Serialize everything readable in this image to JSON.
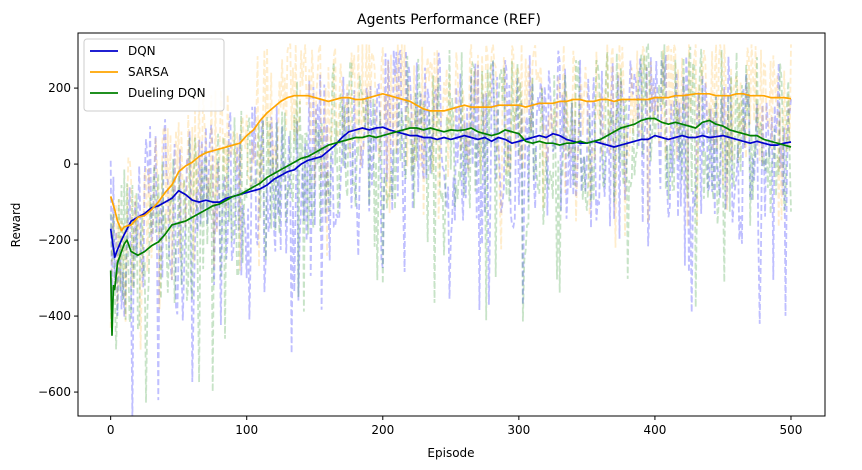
{
  "chart_data": {
    "type": "line",
    "title": "Agents Performance (REF)",
    "xlabel": "Episode",
    "ylabel": "Reward",
    "xlim": [
      -24,
      525
    ],
    "ylim": [
      -663,
      345
    ],
    "xticks": [
      0,
      100,
      200,
      300,
      400,
      500
    ],
    "yticks": [
      -600,
      -400,
      -200,
      0,
      200
    ],
    "grid": false,
    "legend_position": "top-left",
    "series": [
      {
        "name": "DQN",
        "color": "#0000cc",
        "style": "solid",
        "x": [
          0,
          3,
          5,
          8,
          10,
          15,
          20,
          25,
          30,
          35,
          40,
          45,
          50,
          55,
          60,
          65,
          70,
          75,
          80,
          85,
          90,
          95,
          100,
          105,
          110,
          115,
          120,
          125,
          130,
          135,
          140,
          145,
          150,
          155,
          160,
          165,
          170,
          175,
          180,
          185,
          190,
          195,
          200,
          205,
          210,
          215,
          220,
          225,
          230,
          235,
          240,
          245,
          250,
          255,
          260,
          265,
          270,
          275,
          280,
          285,
          290,
          295,
          300,
          305,
          310,
          315,
          320,
          325,
          330,
          335,
          340,
          345,
          350,
          355,
          360,
          365,
          370,
          375,
          380,
          385,
          390,
          395,
          400,
          405,
          410,
          415,
          420,
          425,
          430,
          435,
          440,
          445,
          450,
          455,
          460,
          465,
          470,
          475,
          480,
          485,
          490,
          495,
          500
        ],
        "y": [
          -170,
          -245,
          -225,
          -200,
          -185,
          -150,
          -140,
          -130,
          -115,
          -110,
          -100,
          -90,
          -70,
          -80,
          -95,
          -100,
          -95,
          -100,
          -100,
          -90,
          -85,
          -80,
          -75,
          -70,
          -65,
          -55,
          -40,
          -30,
          -20,
          -15,
          0,
          10,
          15,
          20,
          35,
          50,
          70,
          85,
          90,
          95,
          90,
          95,
          97,
          90,
          85,
          80,
          75,
          75,
          70,
          70,
          65,
          70,
          65,
          70,
          75,
          70,
          65,
          70,
          60,
          70,
          65,
          55,
          60,
          65,
          70,
          75,
          70,
          80,
          75,
          65,
          60,
          55,
          55,
          60,
          55,
          50,
          45,
          50,
          55,
          60,
          65,
          65,
          75,
          70,
          65,
          70,
          75,
          70,
          70,
          75,
          70,
          72,
          75,
          70,
          65,
          60,
          55,
          60,
          55,
          50,
          50,
          55,
          58
        ]
      },
      {
        "name": "SARSA",
        "color": "#ffa500",
        "style": "solid",
        "x": [
          0,
          3,
          5,
          8,
          10,
          15,
          20,
          25,
          30,
          35,
          40,
          45,
          50,
          55,
          60,
          65,
          70,
          75,
          80,
          85,
          90,
          95,
          100,
          105,
          110,
          115,
          120,
          125,
          130,
          135,
          140,
          145,
          150,
          155,
          160,
          165,
          170,
          175,
          180,
          185,
          190,
          195,
          200,
          205,
          210,
          215,
          220,
          225,
          230,
          235,
          240,
          245,
          250,
          255,
          260,
          265,
          270,
          275,
          280,
          285,
          290,
          295,
          300,
          305,
          310,
          315,
          320,
          325,
          330,
          335,
          340,
          345,
          350,
          355,
          360,
          365,
          370,
          375,
          380,
          385,
          390,
          395,
          400,
          405,
          410,
          415,
          420,
          425,
          430,
          435,
          440,
          445,
          450,
          455,
          460,
          465,
          470,
          475,
          480,
          485,
          490,
          495,
          500
        ],
        "y": [
          -85,
          -120,
          -150,
          -175,
          -165,
          -160,
          -140,
          -135,
          -120,
          -100,
          -75,
          -55,
          -20,
          -5,
          5,
          20,
          30,
          35,
          40,
          45,
          50,
          55,
          75,
          90,
          115,
          135,
          150,
          165,
          175,
          180,
          180,
          180,
          175,
          170,
          165,
          170,
          175,
          175,
          170,
          170,
          175,
          180,
          185,
          180,
          175,
          170,
          165,
          155,
          145,
          140,
          140,
          140,
          145,
          150,
          155,
          150,
          150,
          150,
          150,
          155,
          155,
          155,
          155,
          150,
          155,
          160,
          160,
          160,
          165,
          165,
          170,
          170,
          165,
          165,
          170,
          170,
          165,
          170,
          170,
          170,
          170,
          170,
          175,
          175,
          175,
          180,
          180,
          182,
          185,
          185,
          185,
          180,
          180,
          180,
          185,
          185,
          180,
          180,
          180,
          175,
          175,
          175,
          172
        ]
      },
      {
        "name": "Dueling DQN",
        "color": "#008000",
        "style": "solid",
        "x": [
          0,
          1,
          2,
          3,
          5,
          8,
          10,
          12,
          15,
          20,
          25,
          30,
          35,
          40,
          45,
          50,
          55,
          60,
          65,
          70,
          75,
          80,
          85,
          90,
          95,
          100,
          105,
          110,
          115,
          120,
          125,
          130,
          135,
          140,
          145,
          150,
          155,
          160,
          165,
          170,
          175,
          180,
          185,
          190,
          195,
          200,
          205,
          210,
          215,
          220,
          225,
          230,
          235,
          240,
          245,
          250,
          255,
          260,
          265,
          270,
          275,
          280,
          285,
          290,
          295,
          300,
          305,
          310,
          315,
          320,
          325,
          330,
          335,
          340,
          345,
          350,
          355,
          360,
          365,
          370,
          375,
          380,
          385,
          390,
          395,
          400,
          405,
          410,
          415,
          420,
          425,
          430,
          435,
          440,
          445,
          450,
          455,
          460,
          465,
          470,
          475,
          480,
          485,
          490,
          495,
          500
        ],
        "y": [
          -280,
          -450,
          -320,
          -330,
          -260,
          -230,
          -210,
          -200,
          -230,
          -240,
          -230,
          -215,
          -205,
          -185,
          -160,
          -155,
          -150,
          -140,
          -130,
          -120,
          -110,
          -105,
          -95,
          -85,
          -80,
          -70,
          -60,
          -50,
          -35,
          -25,
          -15,
          -5,
          5,
          15,
          20,
          30,
          40,
          50,
          55,
          60,
          65,
          70,
          70,
          75,
          70,
          75,
          80,
          85,
          90,
          95,
          95,
          90,
          95,
          90,
          85,
          90,
          88,
          90,
          95,
          85,
          80,
          75,
          80,
          90,
          85,
          80,
          60,
          55,
          60,
          55,
          55,
          50,
          55,
          55,
          60,
          55,
          60,
          65,
          75,
          85,
          95,
          100,
          105,
          115,
          120,
          120,
          110,
          105,
          110,
          105,
          100,
          95,
          110,
          115,
          105,
          100,
          90,
          85,
          80,
          75,
          75,
          65,
          60,
          55,
          50,
          45
        ]
      }
    ],
    "raw_series": [
      {
        "name": "DQN",
        "color": "#0000ff",
        "style": "dashed",
        "opacity": 0.25,
        "seed": 17,
        "amplitude": 230
      },
      {
        "name": "SARSA",
        "color": "#ffa500",
        "style": "dashed",
        "opacity": 0.2,
        "seed": 53,
        "amplitude": 180
      },
      {
        "name": "Dueling DQN",
        "color": "#008000",
        "style": "dashed",
        "opacity": 0.22,
        "seed": 91,
        "amplitude": 220
      }
    ]
  }
}
